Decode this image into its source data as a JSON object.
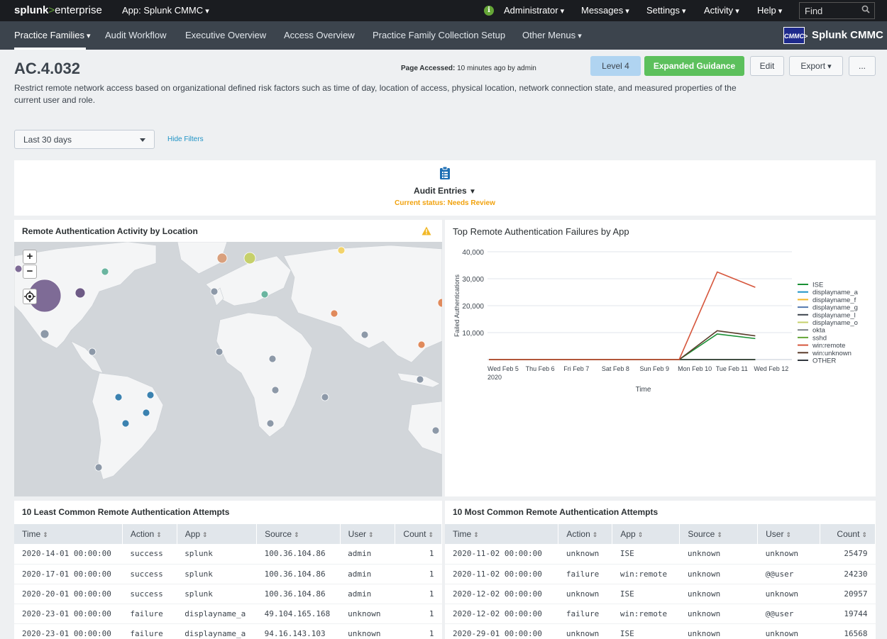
{
  "topbar": {
    "logo_main": "splunk",
    "logo_arrow": ">",
    "logo_product": "enterprise",
    "app_label": "App: Splunk CMMC",
    "menus": [
      "Administrator",
      "Messages",
      "Settings",
      "Activity",
      "Help"
    ],
    "find_placeholder": "Find"
  },
  "nav": {
    "items": [
      "Practice Families",
      "Audit Workflow",
      "Executive Overview",
      "Access Overview",
      "Practice Family Collection Setup",
      "Other Menus"
    ],
    "logo_text": "CMMC>",
    "brand": "Splunk CMMC"
  },
  "header": {
    "title": "AC.4.032",
    "page_accessed_label": "Page Accessed:",
    "page_accessed_value": "10 minutes ago by admin",
    "level": "Level 4",
    "guidance": "Expanded Guidance",
    "edit": "Edit",
    "export": "Export",
    "more": "...",
    "description": "Restrict remote network access based on organizational defined risk factors such as time of day, location of access, physical location, network connection state, and measured properties of the current user and role."
  },
  "filters": {
    "timerange": "Last 30 days",
    "hide": "Hide Filters"
  },
  "audit": {
    "label": "Audit Entries",
    "status": "Current status: Needs Review"
  },
  "map": {
    "title": "Remote Authentication Activity by Location",
    "zoom_in": "+",
    "zoom_out": "−"
  },
  "chart": {
    "title": "Top Remote Authentication Failures by App"
  },
  "chart_data": {
    "type": "line",
    "title": "Top Remote Authentication Failures by App",
    "xlabel": "Time",
    "ylabel": "Failed Authentications",
    "ylim": [
      0,
      40000
    ],
    "yticks": [
      "40,000",
      "30,000",
      "20,000",
      "10,000"
    ],
    "categories": [
      "Wed Feb 5",
      "Thu Feb 6",
      "Fri Feb 7",
      "Sat Feb 8",
      "Sun Feb 9",
      "Mon Feb 10",
      "Tue Feb 11",
      "Wed Feb 12"
    ],
    "x_year": "2020",
    "legend_position": "right",
    "series": [
      {
        "name": "ISE",
        "color": "#1a9035",
        "values": [
          0,
          0,
          0,
          0,
          0,
          0,
          9500,
          7800
        ]
      },
      {
        "name": "displayname_a",
        "color": "#1e93c6",
        "values": [
          0,
          0,
          0,
          0,
          0,
          0,
          0,
          0
        ]
      },
      {
        "name": "displayname_f",
        "color": "#f2b827",
        "values": [
          0,
          0,
          0,
          0,
          0,
          0,
          0,
          0
        ]
      },
      {
        "name": "displayname_g",
        "color": "#5479af",
        "values": [
          0,
          0,
          0,
          0,
          0,
          0,
          0,
          0
        ]
      },
      {
        "name": "displayname_l",
        "color": "#3c444d",
        "values": [
          0,
          0,
          0,
          0,
          0,
          0,
          0,
          0
        ]
      },
      {
        "name": "displayname_o",
        "color": "#c6d06b",
        "values": [
          0,
          0,
          0,
          0,
          0,
          0,
          0,
          0
        ]
      },
      {
        "name": "okta",
        "color": "#7b8288",
        "values": [
          0,
          0,
          0,
          0,
          0,
          0,
          0,
          0
        ]
      },
      {
        "name": "sshd",
        "color": "#65a637",
        "values": [
          0,
          0,
          0,
          0,
          0,
          0,
          0,
          0
        ]
      },
      {
        "name": "win:remote",
        "color": "#d6563c",
        "values": [
          0,
          0,
          0,
          0,
          0,
          0,
          32500,
          26800
        ]
      },
      {
        "name": "win:unknown",
        "color": "#5a3b2a",
        "values": [
          0,
          0,
          0,
          0,
          0,
          0,
          10700,
          8800
        ]
      },
      {
        "name": "OTHER",
        "color": "#31373e",
        "values": [
          0,
          0,
          0,
          0,
          0,
          0,
          0,
          0
        ]
      }
    ]
  },
  "table_left": {
    "title": "10 Least Common Remote Authentication Attempts",
    "columns": [
      "Time",
      "Action",
      "App",
      "Source",
      "User",
      "Count"
    ],
    "rows": [
      [
        "2020-14-01 00:00:00",
        "success",
        "splunk",
        "100.36.104.86",
        "admin",
        "1"
      ],
      [
        "2020-17-01 00:00:00",
        "success",
        "splunk",
        "100.36.104.86",
        "admin",
        "1"
      ],
      [
        "2020-20-01 00:00:00",
        "success",
        "splunk",
        "100.36.104.86",
        "admin",
        "1"
      ],
      [
        "2020-23-01 00:00:00",
        "failure",
        "displayname_a",
        "49.104.165.168",
        "unknown",
        "1"
      ],
      [
        "2020-23-01 00:00:00",
        "failure",
        "displayname_a",
        "94.16.143.103",
        "unknown",
        "1"
      ]
    ]
  },
  "table_right": {
    "title": "10 Most Common Remote Authentication Attempts",
    "columns": [
      "Time",
      "Action",
      "App",
      "Source",
      "User",
      "Count"
    ],
    "rows": [
      [
        "2020-11-02 00:00:00",
        "unknown",
        "ISE",
        "unknown",
        "unknown",
        "25479"
      ],
      [
        "2020-11-02 00:00:00",
        "failure",
        "win:remote",
        "unknown",
        "@@user",
        "24230"
      ],
      [
        "2020-12-02 00:00:00",
        "unknown",
        "ISE",
        "unknown",
        "unknown",
        "20957"
      ],
      [
        "2020-12-02 00:00:00",
        "failure",
        "win:remote",
        "unknown",
        "@@user",
        "19744"
      ],
      [
        "2020-29-01 00:00:00",
        "unknown",
        "ISE",
        "unknown",
        "unknown",
        "16568"
      ]
    ]
  },
  "colors": {
    "topbar": "#1a1c20",
    "navbar": "#3c444d",
    "accent_green": "#5cc05c",
    "level_blue": "#b0d4f1",
    "status_orange": "#f1a20d",
    "link_blue": "#1e93c6"
  }
}
